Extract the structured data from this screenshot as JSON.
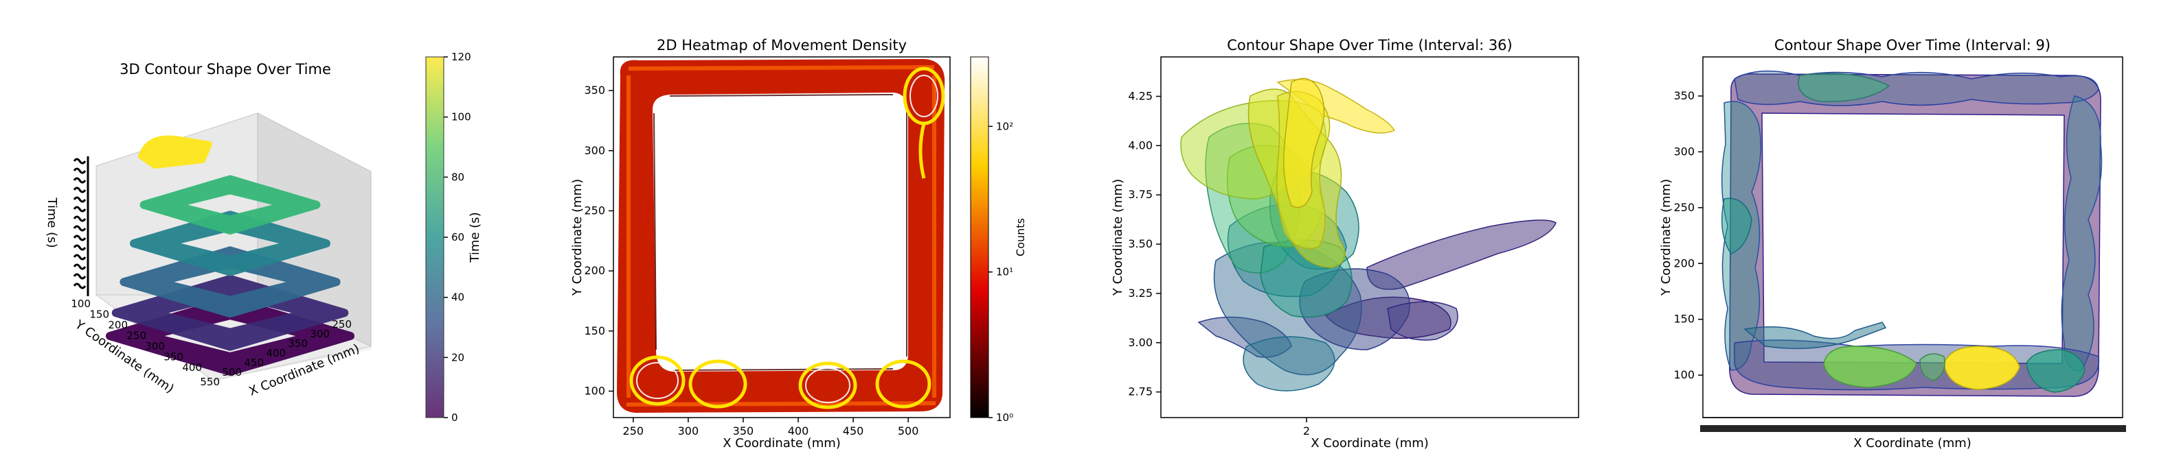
{
  "chart_data": [
    {
      "type": "3d-stacked-contour",
      "title": "3D Contour Shape Over Time",
      "xlabel": "X Coordinate (mm)",
      "ylabel": "Y Coordinate (mm)",
      "zlabel": "Time (s)",
      "x_ticks": [
        "250",
        "300",
        "350",
        "400",
        "450",
        "500",
        "550"
      ],
      "y_ticks": [
        "100",
        "150",
        "200",
        "250",
        "300",
        "350",
        "400"
      ],
      "layers": [
        {
          "time": 0,
          "color": "#440154"
        },
        {
          "time": 15,
          "color": "#3b2a74"
        },
        {
          "time": 35,
          "color": "#31688e"
        },
        {
          "time": 60,
          "color": "#26828e"
        },
        {
          "time": 85,
          "color": "#35b779"
        },
        {
          "time": 120,
          "color": "#fde725"
        }
      ],
      "colorbar": {
        "label": "Time (s)",
        "ticks": [
          "0",
          "20",
          "40",
          "60",
          "80",
          "100",
          "120"
        ],
        "range": [
          0,
          120
        ]
      }
    },
    {
      "type": "heatmap",
      "title": "2D Heatmap of Movement Density",
      "xlabel": "X Coordinate (mm)",
      "ylabel": "Y Coordinate (mm)",
      "x_ticks": [
        "250",
        "300",
        "350",
        "400",
        "450",
        "500"
      ],
      "y_ticks": [
        "100",
        "150",
        "200",
        "250",
        "300",
        "350"
      ],
      "xlim": [
        232,
        538
      ],
      "ylim": [
        78,
        378
      ],
      "square_track": {
        "x_range": [
          240,
          530
        ],
        "y_range": [
          85,
          372
        ]
      },
      "colorbar": {
        "label": "Counts",
        "scale": "log",
        "ticks": [
          "10⁰",
          "10¹",
          "10²"
        ],
        "range": [
          1,
          300
        ]
      }
    },
    {
      "type": "contour-overlay",
      "title": "Contour Shape Over Time (Interval: 36)",
      "xlabel": "X Coordinate (mm)",
      "ylabel": "Y Coordinate (mm)",
      "x_ticks": [
        "2"
      ],
      "y_ticks": [
        "2.75",
        "3.00",
        "3.25",
        "3.50",
        "3.75",
        "4.00",
        "4.25"
      ],
      "ylim": [
        2.62,
        4.45
      ]
    },
    {
      "type": "contour-overlay",
      "title": "Contour Shape Over Time (Interval: 9)",
      "xlabel": "X Coordinate (mm)",
      "ylabel": "Y Coordinate (mm)",
      "y_ticks": [
        "100",
        "150",
        "200",
        "250",
        "300",
        "350"
      ],
      "ylim": [
        62,
        385
      ]
    }
  ]
}
